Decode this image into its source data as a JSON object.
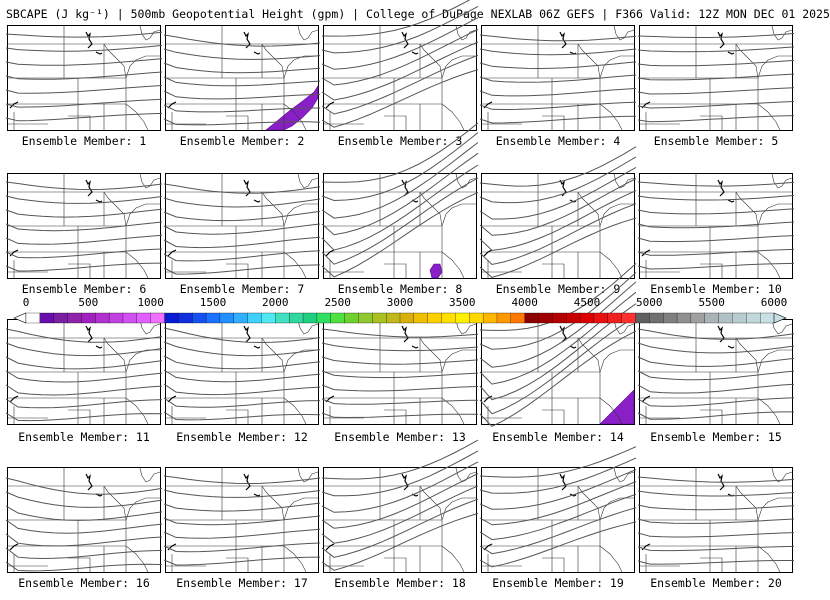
{
  "title": "SBCAPE (J kg⁻¹) | 500mb Geopotential Height (gpm) | College of DuPage NEXLAB 06Z GEFS | F366 Valid: 12Z MON DEC 01 2025",
  "members": [
    {
      "label": "Ensemble Member: 1"
    },
    {
      "label": "Ensemble Member: 2"
    },
    {
      "label": "Ensemble Member: 3"
    },
    {
      "label": "Ensemble Member: 4"
    },
    {
      "label": "Ensemble Member: 5"
    },
    {
      "label": "Ensemble Member: 6"
    },
    {
      "label": "Ensemble Member: 7"
    },
    {
      "label": "Ensemble Member: 8"
    },
    {
      "label": "Ensemble Member: 9"
    },
    {
      "label": "Ensemble Member: 10"
    },
    {
      "label": "Ensemble Member: 11"
    },
    {
      "label": "Ensemble Member: 12"
    },
    {
      "label": "Ensemble Member: 13"
    },
    {
      "label": "Ensemble Member: 14"
    },
    {
      "label": "Ensemble Member: 15"
    },
    {
      "label": "Ensemble Member: 16"
    },
    {
      "label": "Ensemble Member: 17"
    },
    {
      "label": "Ensemble Member: 18"
    },
    {
      "label": "Ensemble Member: 19"
    },
    {
      "label": "Ensemble Member: 20"
    }
  ],
  "colorbar": {
    "labels": [
      "0",
      "500",
      "1000",
      "1500",
      "2000",
      "2500",
      "3000",
      "3500",
      "4000",
      "4500",
      "5000",
      "5500",
      "6000"
    ],
    "min": 0,
    "max": 6000,
    "colors": [
      "#ffffff",
      "#6a0dad",
      "#7b1fa2",
      "#8e24aa",
      "#a020c0",
      "#b030d0",
      "#c040e0",
      "#d050f0",
      "#e060ff",
      "#f070ff",
      "#0a1ad0",
      "#1030e0",
      "#1550f0",
      "#1a70ff",
      "#2090ff",
      "#30b0ff",
      "#40d0ff",
      "#50e8f0",
      "#40e0c0",
      "#30d8a0",
      "#20d080",
      "#30e060",
      "#50e040",
      "#70d030",
      "#90c830",
      "#a8c020",
      "#c0b818",
      "#d8b010",
      "#f0c000",
      "#ffd000",
      "#ffe000",
      "#fff000",
      "#ffd800",
      "#ffb800",
      "#ff9800",
      "#ff7800",
      "#8b0000",
      "#a00000",
      "#b40000",
      "#c80000",
      "#dc0000",
      "#e81010",
      "#f02020",
      "#ff3030",
      "#606060",
      "#707070",
      "#808080",
      "#909090",
      "#a0a0a0",
      "#a8b4b8",
      "#b0c0c4",
      "#b8ccd0",
      "#c0d8dc",
      "#c8e0e4"
    ]
  }
}
